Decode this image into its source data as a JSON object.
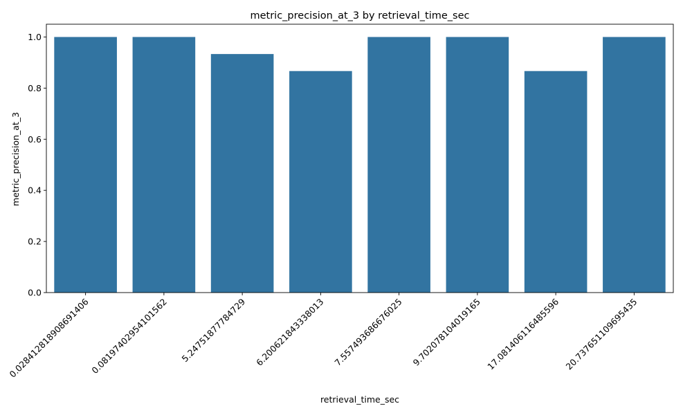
{
  "chart_data": {
    "type": "bar",
    "title": "metric_precision_at_3 by retrieval_time_sec",
    "xlabel": "retrieval_time_sec",
    "ylabel": "metric_precision_at_3",
    "categories": [
      "0.028412818908691406",
      "0.0819740295410156​2",
      "5.24751877784729",
      "6.20062184333801​3",
      "7.55749368667602​5",
      "9.70207810401916​5",
      "17.08140611648559​6",
      "20.73765110969543​5"
    ],
    "values": [
      1.0,
      1.0,
      0.9333,
      0.8667,
      1.0,
      1.0,
      0.8667,
      1.0
    ],
    "ylim": [
      0,
      1.05
    ],
    "yticks": [
      "0.0",
      "0.2",
      "0.4",
      "0.6",
      "0.8",
      "1.0"
    ],
    "ytick_values": [
      0,
      0.2,
      0.4,
      0.6,
      0.8,
      1.0
    ],
    "bar_color": "#3274a1",
    "grid": false,
    "legend": "none"
  }
}
